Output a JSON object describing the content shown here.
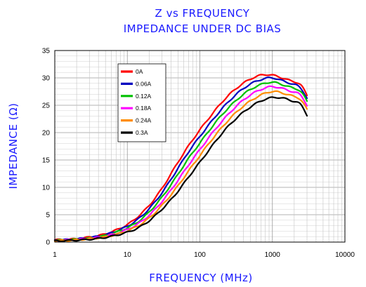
{
  "chart_data": {
    "type": "line",
    "title": "Z vs FREQUENCY",
    "subtitle": "IMPEDANCE UNDER DC BIAS",
    "xlabel": "FREQUENCY (MHz)",
    "ylabel": "IMPEDANCE (Ω)",
    "xscale": "log",
    "xlim": [
      1,
      10000
    ],
    "ylim": [
      0,
      35
    ],
    "xticks": [
      1,
      10,
      100,
      1000,
      10000
    ],
    "xtick_labels": [
      "1",
      "10",
      "100",
      "1000",
      "10000"
    ],
    "yticks": [
      0,
      5,
      10,
      15,
      20,
      25,
      30,
      35
    ],
    "ytick_labels": [
      "0",
      "5",
      "10",
      "15",
      "20",
      "25",
      "30",
      "35"
    ],
    "grid": true,
    "legend_position": "top-left",
    "x": [
      1,
      2,
      3,
      5,
      7,
      10,
      15,
      20,
      30,
      50,
      70,
      100,
      150,
      200,
      300,
      500,
      700,
      1000,
      1500,
      2000,
      2500,
      3000
    ],
    "series": [
      {
        "name": "0A",
        "color": "#ff0000",
        "values": [
          0.4,
          0.6,
          0.9,
          1.5,
          2.2,
          3.2,
          5.0,
          6.7,
          9.8,
          14.6,
          17.6,
          20.5,
          23.5,
          25.5,
          27.8,
          29.8,
          30.5,
          30.5,
          29.8,
          29.3,
          28.6,
          26.8
        ]
      },
      {
        "name": "0.06A",
        "color": "#0000c0",
        "values": [
          0.35,
          0.55,
          0.8,
          1.35,
          2.0,
          2.9,
          4.5,
          6.1,
          9.0,
          13.5,
          16.5,
          19.3,
          22.3,
          24.3,
          26.7,
          28.9,
          29.7,
          30.0,
          29.3,
          28.8,
          28.0,
          26.3
        ]
      },
      {
        "name": "0.12A",
        "color": "#00c000",
        "values": [
          0.3,
          0.5,
          0.7,
          1.2,
          1.8,
          2.6,
          4.0,
          5.5,
          8.2,
          12.4,
          15.3,
          18.1,
          21.2,
          23.2,
          25.6,
          27.9,
          28.8,
          29.2,
          28.6,
          28.1,
          27.4,
          25.7
        ]
      },
      {
        "name": "0.18A",
        "color": "#ff00ff",
        "values": [
          0.28,
          0.45,
          0.65,
          1.05,
          1.55,
          2.3,
          3.6,
          4.9,
          7.4,
          11.3,
          14.1,
          16.9,
          20.0,
          22.0,
          24.5,
          26.9,
          27.9,
          28.4,
          27.9,
          27.4,
          26.7,
          25.0
        ]
      },
      {
        "name": "0.24A",
        "color": "#ff8c00",
        "values": [
          0.25,
          0.4,
          0.6,
          0.95,
          1.4,
          2.05,
          3.2,
          4.4,
          6.7,
          10.3,
          13.0,
          15.8,
          18.9,
          20.9,
          23.4,
          25.8,
          26.9,
          27.5,
          27.1,
          26.6,
          25.9,
          24.2
        ]
      },
      {
        "name": "0.3A",
        "color": "#000000",
        "values": [
          0.22,
          0.35,
          0.5,
          0.85,
          1.25,
          1.8,
          2.8,
          3.9,
          6.0,
          9.3,
          11.9,
          14.6,
          17.7,
          19.8,
          22.3,
          24.7,
          25.8,
          26.4,
          26.2,
          25.7,
          25.0,
          23.2
        ]
      }
    ]
  }
}
